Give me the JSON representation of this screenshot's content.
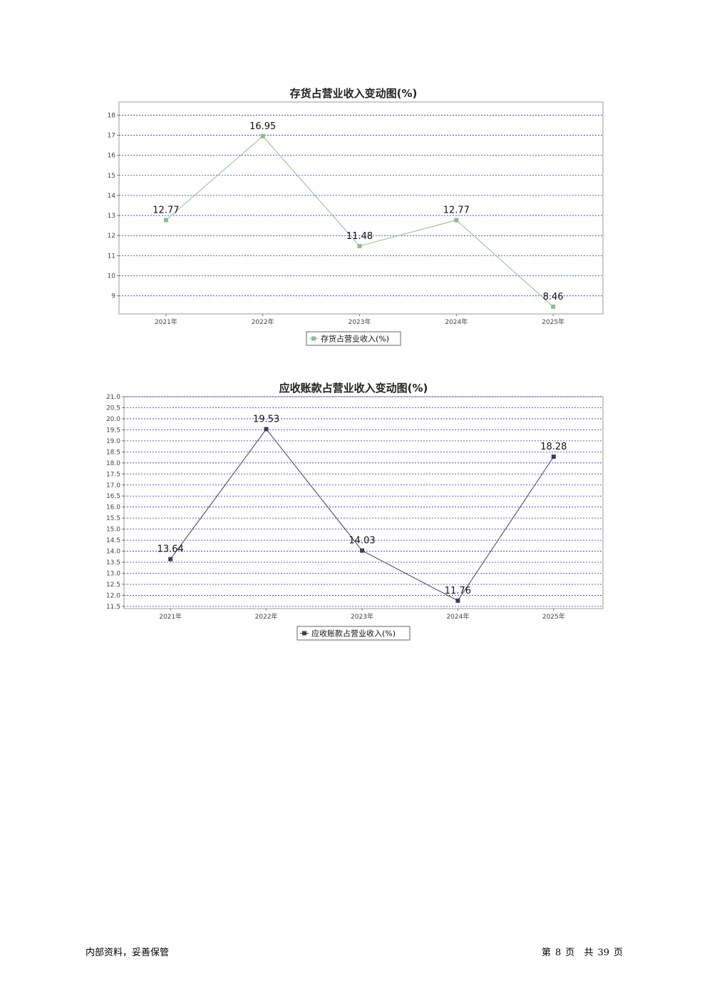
{
  "chart_data": [
    {
      "type": "line",
      "title": "存货占营业收入变动图(%)",
      "categories": [
        "2021年",
        "2022年",
        "2023年",
        "2024年",
        "2025年"
      ],
      "series": [
        {
          "name": "存货占营业收入(%)",
          "values": [
            12.77,
            16.95,
            11.48,
            12.77,
            8.46
          ],
          "color": "#8fbc8f",
          "marker_color": "#8fbc8f"
        }
      ],
      "yticks": [
        "9",
        "10",
        "11",
        "12",
        "13",
        "14",
        "15",
        "16",
        "17",
        "18"
      ],
      "ylim": [
        8.1,
        18.65
      ],
      "grid": true,
      "grid_color": "#2a2acc",
      "legend": "bottom"
    },
    {
      "type": "line",
      "title": "应收账款占营业收入变动图(%)",
      "categories": [
        "2021年",
        "2022年",
        "2023年",
        "2024年",
        "2025年"
      ],
      "series": [
        {
          "name": "应收账款占营业收入(%)",
          "values": [
            13.64,
            19.53,
            14.03,
            11.76,
            18.28
          ],
          "color": "#3c3c64",
          "marker_color": "#3c3c64"
        }
      ],
      "yticks": [
        "11.5",
        "12.0",
        "12.5",
        "13.0",
        "13.5",
        "14.0",
        "14.5",
        "15.0",
        "15.5",
        "16.0",
        "16.5",
        "17.0",
        "17.5",
        "18.0",
        "18.5",
        "19.0",
        "19.5",
        "20.0",
        "20.5",
        "21.0"
      ],
      "ylim": [
        11.4,
        21.0
      ],
      "grid": true,
      "grid_color": "#2a2acc",
      "legend": "bottom"
    }
  ],
  "footer": {
    "left_text": "内部资料，妥善保管",
    "page_prefix": "第",
    "page_number": "8",
    "page_suffix": "页",
    "total_prefix": "共",
    "total_pages": "39",
    "total_suffix": "页"
  }
}
